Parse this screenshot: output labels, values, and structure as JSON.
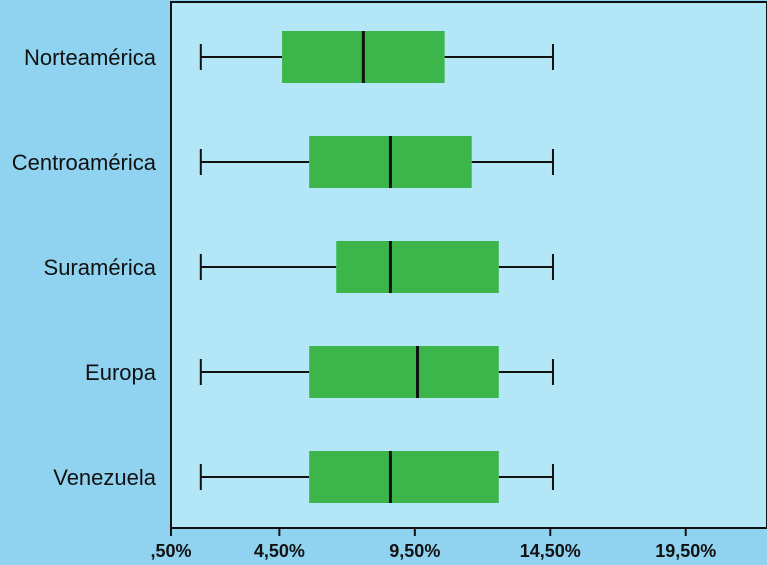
{
  "colors": {
    "page_background": "#8fd3f1",
    "plot_background": "#b3e6f7",
    "box_fill": "#3cb64a",
    "line": "#111111"
  },
  "chart_data": {
    "type": "boxplot",
    "orientation": "horizontal",
    "categories": [
      "Norteamérica",
      "Centroamérica",
      "Suramérica",
      "Europa",
      "Venezuela"
    ],
    "xlim": [
      0.5,
      22.5
    ],
    "xticks": [
      0.5,
      4.5,
      9.5,
      14.5,
      19.5
    ],
    "xtick_labels": [
      ",50%",
      "4,50%",
      "9,50%",
      "14,50%",
      "19,50%"
    ],
    "grid": false,
    "legend": "none",
    "boxes": [
      {
        "category": "Norteamérica",
        "whisker_low": 1.6,
        "q1": 4.6,
        "median": 7.6,
        "q3": 10.6,
        "whisker_high": 14.6
      },
      {
        "category": "Centroamérica",
        "whisker_low": 1.6,
        "q1": 5.6,
        "median": 8.6,
        "q3": 11.6,
        "whisker_high": 14.6
      },
      {
        "category": "Suramérica",
        "whisker_low": 1.6,
        "q1": 6.6,
        "median": 8.6,
        "q3": 12.6,
        "whisker_high": 14.6
      },
      {
        "category": "Europa",
        "whisker_low": 1.6,
        "q1": 5.6,
        "median": 9.6,
        "q3": 12.6,
        "whisker_high": 14.6
      },
      {
        "category": "Venezuela",
        "whisker_low": 1.6,
        "q1": 5.6,
        "median": 8.6,
        "q3": 12.6,
        "whisker_high": 14.6
      }
    ]
  }
}
